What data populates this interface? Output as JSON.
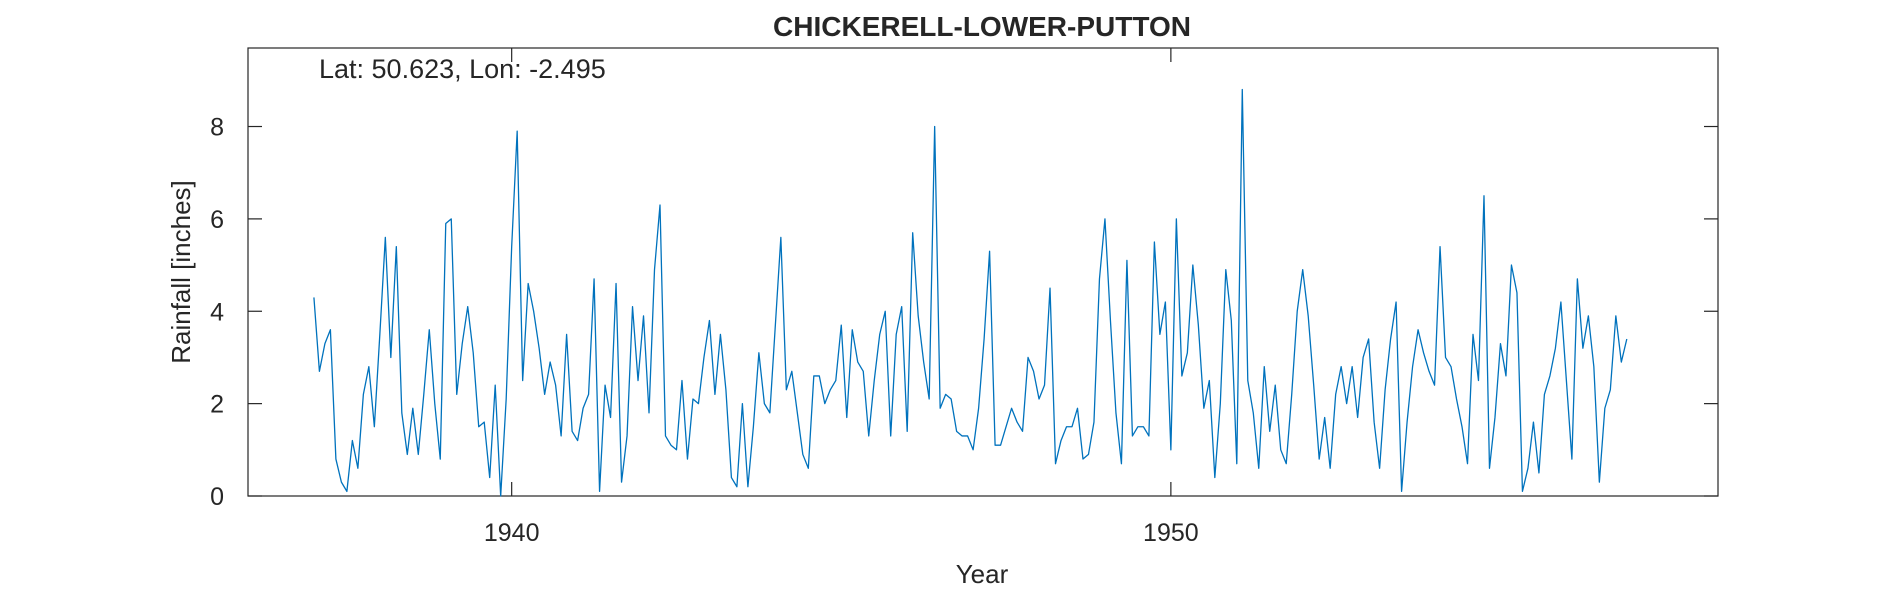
{
  "chart_data": {
    "type": "line",
    "title": "CHICKERELL-LOWER-PUTTON",
    "annotation": "Lat: 50.623, Lon: -2.495",
    "xlabel": "Year",
    "ylabel": "Rainfall [inches]",
    "xlim": [
      1936,
      1958.3
    ],
    "ylim": [
      0,
      9.7
    ],
    "xticks": [
      1940,
      1950
    ],
    "xtick_labels": [
      "1940",
      "1950"
    ],
    "yticks": [
      0,
      2,
      4,
      6,
      8
    ],
    "ytick_labels": [
      "0",
      "2",
      "4",
      "6",
      "8"
    ],
    "grid": false,
    "line_color": "#0072BD",
    "series": [
      {
        "start": "1937-01",
        "step": "month",
        "values": [
          4.3,
          2.7,
          3.3,
          3.6,
          0.8,
          0.3,
          0.1,
          1.2,
          0.6,
          2.2,
          2.8,
          1.5,
          3.5,
          5.6,
          3.0,
          5.4,
          1.8,
          0.9,
          1.9,
          0.9,
          2.2,
          3.6,
          2.0,
          0.8,
          5.9,
          6.0,
          2.2,
          3.3,
          4.1,
          3.1,
          1.5,
          1.6,
          0.4,
          2.4,
          0.0,
          2.1,
          5.4,
          7.9,
          2.5,
          4.6,
          4.0,
          3.2,
          2.2,
          2.9,
          2.4,
          1.3,
          3.5,
          1.4,
          1.2,
          1.9,
          2.2,
          4.7,
          0.1,
          2.4,
          1.7,
          4.6,
          0.3,
          1.3,
          4.1,
          2.5,
          3.9,
          1.8,
          4.9,
          6.3,
          1.3,
          1.1,
          1.0,
          2.5,
          0.8,
          2.1,
          2.0,
          3.0,
          3.8,
          2.2,
          3.5,
          2.3,
          0.4,
          0.2,
          2.0,
          0.2,
          1.5,
          3.1,
          2.0,
          1.8,
          3.7,
          5.6,
          2.3,
          2.7,
          1.8,
          0.9,
          0.6,
          2.6,
          2.6,
          2.0,
          2.3,
          2.5,
          3.7,
          1.7,
          3.6,
          2.9,
          2.7,
          1.3,
          2.5,
          3.5,
          4.0,
          1.3,
          3.5,
          4.1,
          1.4,
          5.7,
          3.9,
          2.9,
          2.1,
          8.0,
          1.9,
          2.2,
          2.1,
          1.4,
          1.3,
          1.3,
          1.0,
          1.9,
          3.4,
          5.3,
          1.1,
          1.1,
          1.5,
          1.9,
          1.6,
          1.4,
          3.0,
          2.7,
          2.1,
          2.4,
          4.5,
          0.7,
          1.2,
          1.5,
          1.5,
          1.9,
          0.8,
          0.9,
          1.6,
          4.7,
          6.0,
          3.8,
          1.8,
          0.7,
          5.1,
          1.3,
          1.5,
          1.5,
          1.3,
          5.5,
          3.5,
          4.2,
          1.0,
          6.0,
          2.6,
          3.1,
          5.0,
          3.7,
          1.9,
          2.5,
          0.4,
          2.0,
          4.9,
          3.8,
          0.7,
          8.8,
          2.5,
          1.8,
          0.6,
          2.8,
          1.4,
          2.4,
          1.0,
          0.7,
          2.2,
          4.0,
          4.9,
          3.9,
          2.4,
          0.8,
          1.7,
          0.6,
          2.2,
          2.8,
          2.0,
          2.8,
          1.7,
          3.0,
          3.4,
          1.6,
          0.6,
          2.3,
          3.4,
          4.2,
          0.1,
          1.6,
          2.8,
          3.6,
          3.1,
          2.7,
          2.4,
          5.4,
          3.0,
          2.8,
          2.1,
          1.5,
          0.7,
          3.5,
          2.5,
          6.5,
          0.6,
          1.7,
          3.3,
          2.6,
          5.0,
          4.4,
          0.1,
          0.6,
          1.6,
          0.5,
          2.2,
          2.6,
          3.2,
          4.2,
          2.5,
          0.8,
          4.7,
          3.2,
          3.9,
          2.8,
          0.3,
          1.9,
          2.3,
          3.9,
          2.9,
          3.4
        ]
      }
    ]
  }
}
